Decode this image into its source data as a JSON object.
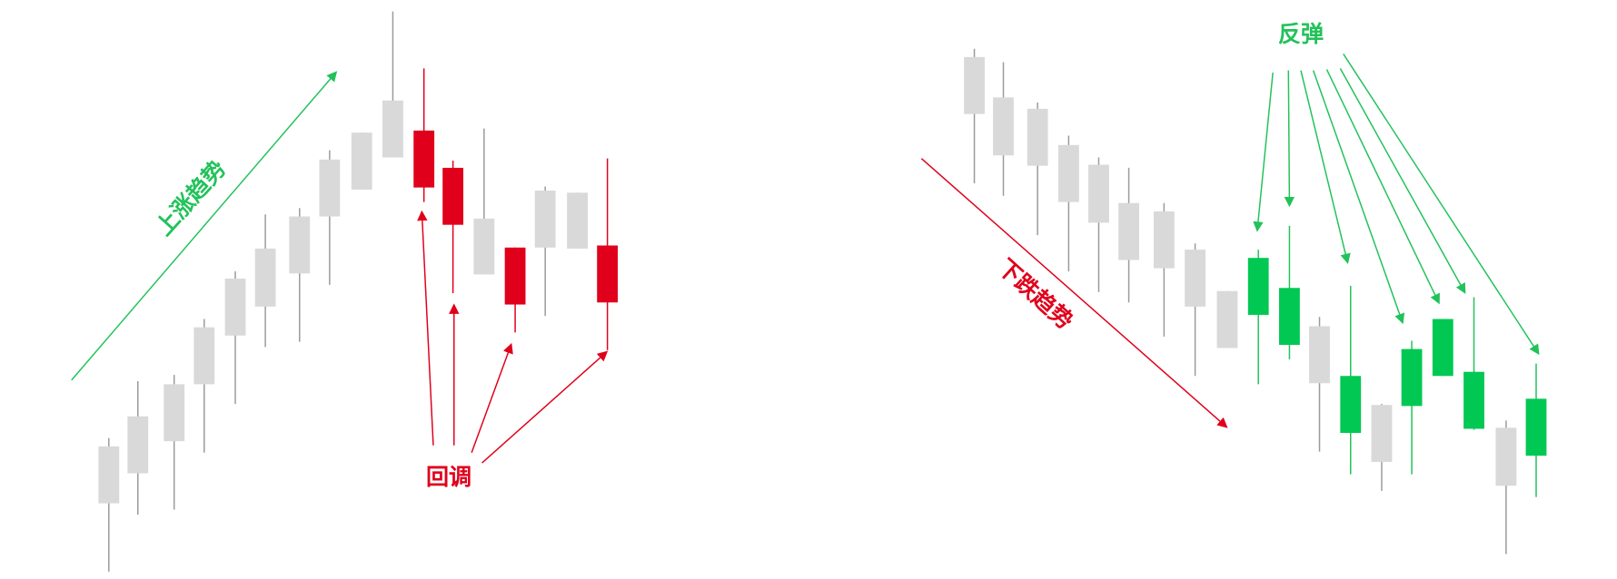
{
  "left": {
    "trend_label": "上涨趋势",
    "pullback_label": "回调"
  },
  "right": {
    "trend_label": "下跌趋势",
    "bounce_label": "反弹"
  }
}
